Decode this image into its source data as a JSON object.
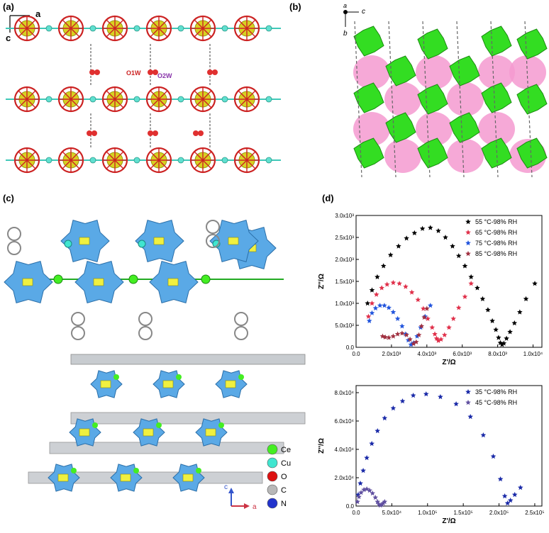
{
  "panels": {
    "a": {
      "label": "(a)",
      "axis_a": "a",
      "axis_c": "c",
      "water_1": "O1W",
      "water_2": "O2W"
    },
    "b": {
      "label": "(b)",
      "axis_a": "a",
      "axis_b": "b",
      "axis_c": "c"
    },
    "c": {
      "label": "(c)",
      "axis_c": "c",
      "axis_a": "a",
      "legend": [
        {
          "name": "Ce",
          "color": "#44ee22"
        },
        {
          "name": "Cu",
          "color": "#40e6d0"
        },
        {
          "name": "O",
          "color": "#dd1111"
        },
        {
          "name": "C",
          "color": "#b8b8b8"
        },
        {
          "name": "N",
          "color": "#2233cc"
        }
      ]
    },
    "d": {
      "label": "(d)"
    }
  },
  "chart_data": [
    {
      "type": "scatter",
      "xlabel": "Z'/Ω",
      "ylabel": "Z''/Ω",
      "xlim": [
        0,
        10500
      ],
      "ylim": [
        0,
        3000
      ],
      "xticks": [
        "0.0",
        "2.0x10³",
        "4.0x10³",
        "6.0x10³",
        "8.0x10³",
        "1.0x10⁴"
      ],
      "xtick_values": [
        0,
        2000,
        4000,
        6000,
        8000,
        10000
      ],
      "yticks": [
        "0.0",
        "5.0x10²",
        "1.0x10³",
        "1.5x10³",
        "2.0x10³",
        "2.5x10³",
        "3.0x10³"
      ],
      "ytick_values": [
        0,
        500,
        1000,
        1500,
        2000,
        2500,
        3000
      ],
      "legend_position": "top-right",
      "series": [
        {
          "name": "55 °C-98% RH",
          "color": "#000000",
          "x": [
            650,
            900,
            1200,
            1550,
            1950,
            2400,
            2850,
            3300,
            3750,
            4200,
            4650,
            5050,
            5450,
            5800,
            6150,
            6500,
            6850,
            7150,
            7450,
            7700,
            7900,
            8050,
            8150,
            8250,
            8350,
            8500,
            8700,
            8950,
            9250,
            9600,
            10100
          ],
          "y": [
            1000,
            1300,
            1600,
            1850,
            2100,
            2300,
            2480,
            2600,
            2700,
            2720,
            2650,
            2500,
            2300,
            2080,
            1850,
            1600,
            1350,
            1100,
            850,
            600,
            400,
            220,
            100,
            60,
            90,
            200,
            350,
            550,
            800,
            1100,
            1450
          ]
        },
        {
          "name": "65 °C-98% RH",
          "color": "#e0304a",
          "x": [
            700,
            900,
            1150,
            1450,
            1750,
            2100,
            2450,
            2800,
            3150,
            3500,
            3800,
            4050,
            4300,
            4450,
            4550,
            4650,
            4800,
            5000,
            5250,
            5500,
            5800,
            6150,
            6500
          ],
          "y": [
            700,
            1000,
            1200,
            1350,
            1430,
            1470,
            1450,
            1380,
            1250,
            1080,
            880,
            650,
            450,
            300,
            200,
            150,
            180,
            280,
            450,
            650,
            900,
            1150,
            1450
          ]
        },
        {
          "name": "75 °C-98% RH",
          "color": "#2255dd",
          "x": [
            750,
            900,
            1100,
            1350,
            1600,
            1850,
            2100,
            2350,
            2600,
            2800,
            2950,
            3100,
            3250,
            3450,
            3650,
            3900,
            4200
          ],
          "y": [
            600,
            780,
            890,
            950,
            950,
            900,
            800,
            650,
            480,
            300,
            160,
            60,
            100,
            250,
            450,
            700,
            950
          ]
        },
        {
          "name": "85 °C-98% RH",
          "color": "#a03040",
          "x": [
            1500,
            1650,
            1850,
            2100,
            2350,
            2600,
            2850,
            3050,
            3250,
            3400,
            3550,
            3700,
            3850,
            4000
          ],
          "y": [
            250,
            230,
            220,
            250,
            300,
            320,
            280,
            180,
            80,
            120,
            280,
            480,
            680,
            880
          ]
        }
      ]
    },
    {
      "type": "scatter",
      "xlabel": "Z'/Ω",
      "ylabel": "Z''/Ω",
      "xlim": [
        0,
        260000
      ],
      "ylim": [
        0,
        85000
      ],
      "xticks": [
        "0.0",
        "5.0x10⁴",
        "1.0x10⁵",
        "1.5x10⁵",
        "2.0x10⁵",
        "2.5x10⁵"
      ],
      "xtick_values": [
        0,
        50000,
        100000,
        150000,
        200000,
        250000
      ],
      "yticks": [
        "0.0",
        "2.0x10⁴",
        "4.0x10⁴",
        "6.0x10⁴",
        "8.0x10⁴"
      ],
      "ytick_values": [
        0,
        20000,
        40000,
        60000,
        80000
      ],
      "legend_position": "top-right",
      "series": [
        {
          "name": "35 °C-98% RH",
          "color": "#1a2aa8",
          "x": [
            3000,
            6000,
            10000,
            15000,
            22000,
            30000,
            40000,
            52000,
            65000,
            80000,
            98000,
            118000,
            140000,
            160000,
            178000,
            192000,
            202000,
            208000,
            212000,
            216000,
            222000,
            230000
          ],
          "y": [
            8000,
            16000,
            25000,
            34000,
            44000,
            53000,
            62000,
            69000,
            74000,
            78000,
            79000,
            77000,
            72000,
            63000,
            50000,
            35000,
            19000,
            7000,
            2000,
            4000,
            8000,
            13000
          ]
        },
        {
          "name": "45 °C-98% RH",
          "color": "#6050a0",
          "x": [
            2000,
            4000,
            7000,
            11000,
            15000,
            19000,
            23000,
            27000,
            30000,
            32000,
            34000,
            36000,
            38000,
            40000
          ],
          "y": [
            3000,
            6500,
            9500,
            11500,
            12000,
            11000,
            9000,
            6000,
            3000,
            1200,
            500,
            1000,
            2000,
            3000
          ]
        }
      ]
    }
  ]
}
